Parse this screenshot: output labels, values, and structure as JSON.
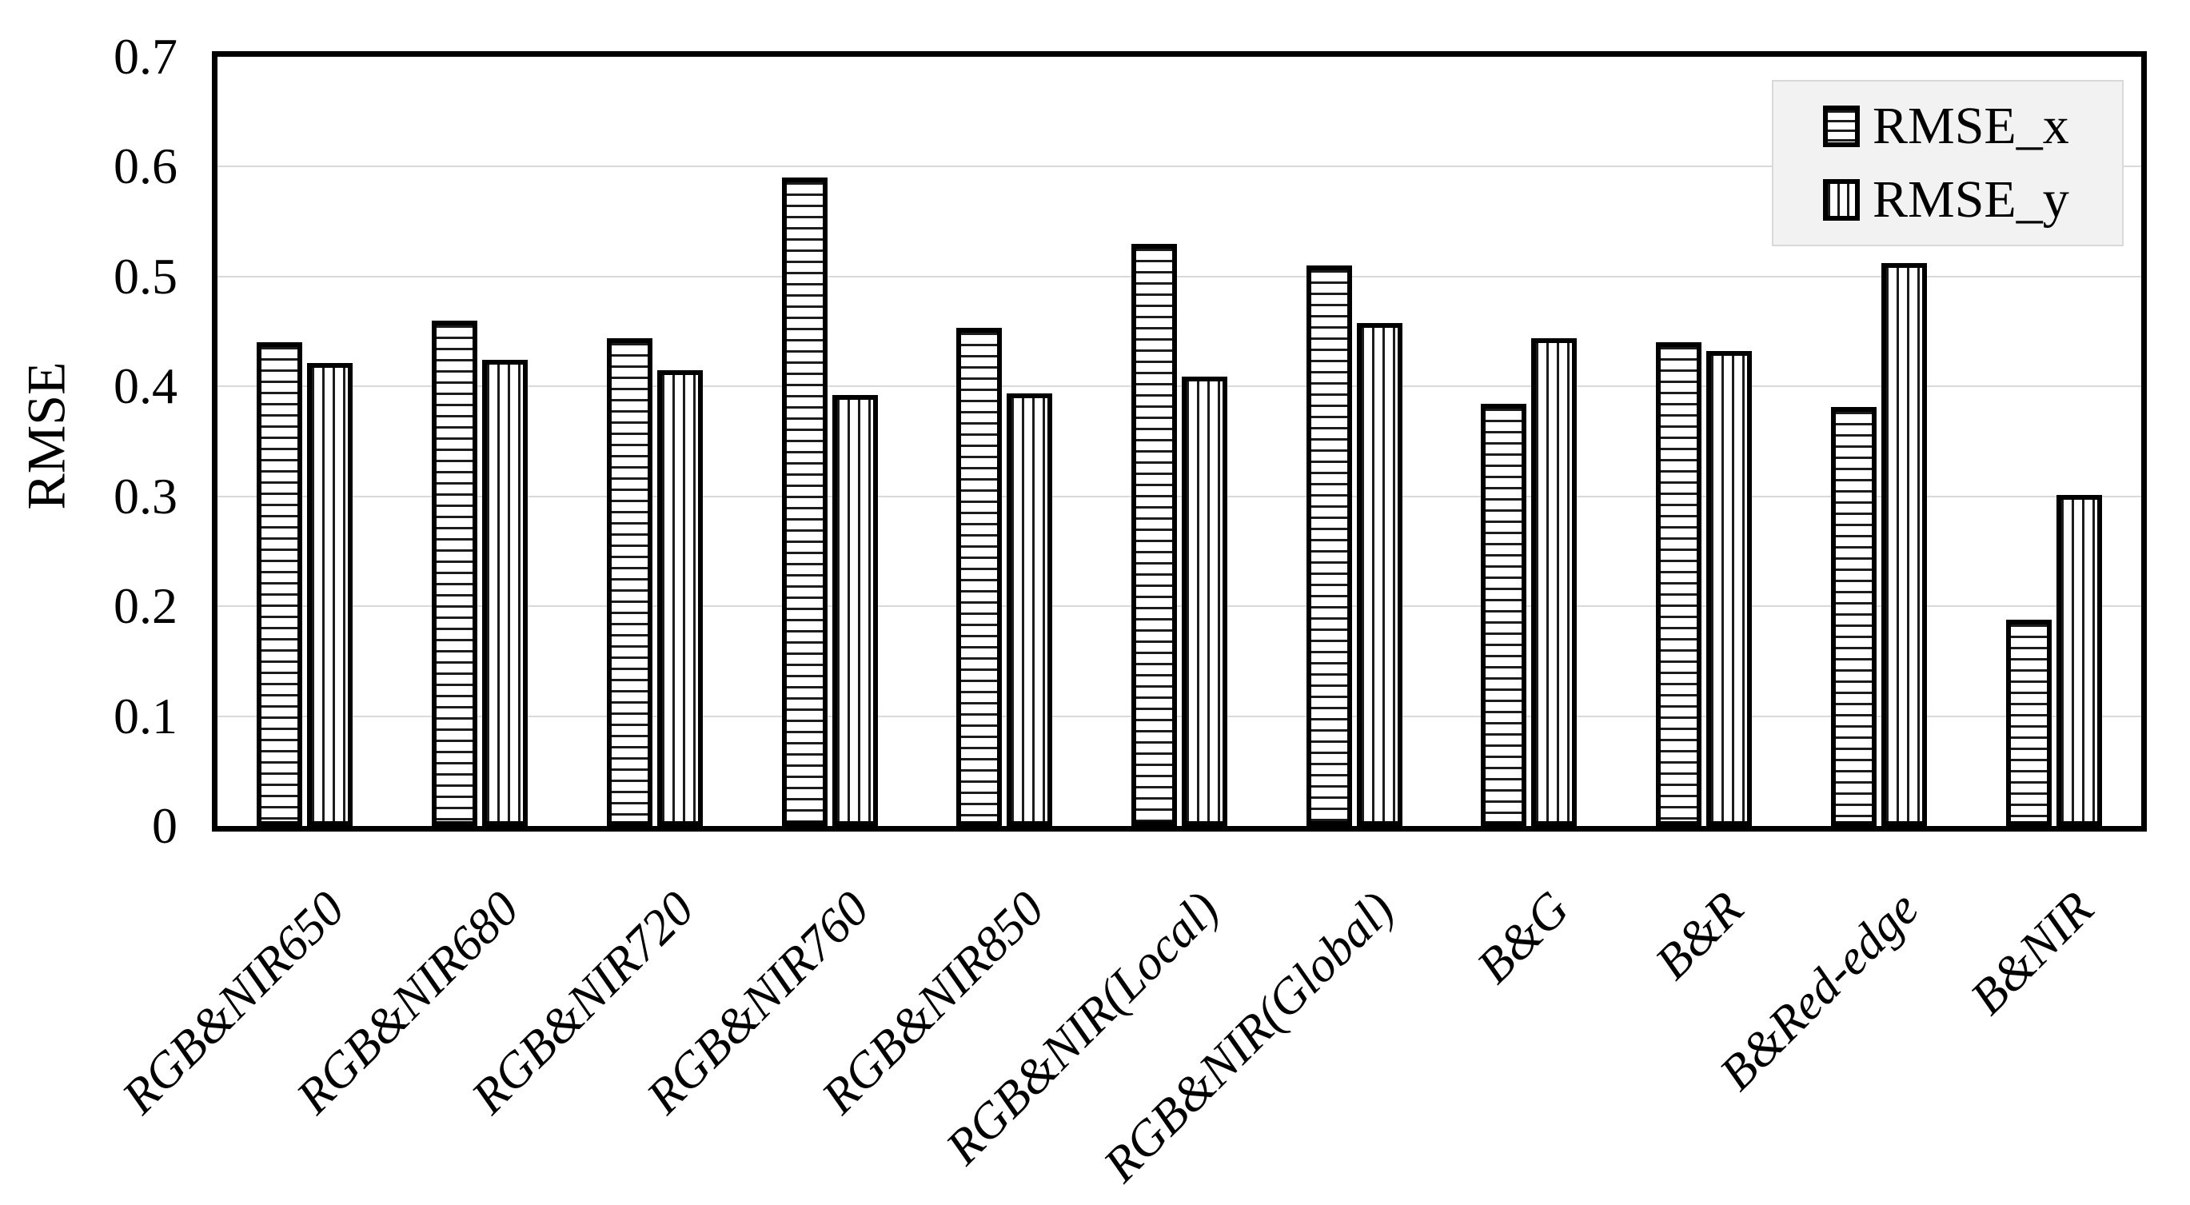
{
  "chart_data": {
    "type": "bar",
    "title": "",
    "xlabel": "",
    "ylabel": "RMSE",
    "ylim": [
      0,
      0.7
    ],
    "ytick_labels": [
      "0",
      "0.1",
      "0.2",
      "0.3",
      "0.4",
      "0.5",
      "0.6",
      "0.7"
    ],
    "grid": "horizontal",
    "legend_position": "top-right-inside",
    "categories": [
      "RGB&NIR650",
      "RGB&NIR680",
      "RGB&NIR720",
      "RGB&NIR760",
      "RGB&NIR850",
      "RGB&NIR(Local)",
      "RGB&NIR(Global)",
      "B&G",
      "B&R",
      "B&Red-edge",
      "B&NIR"
    ],
    "series": [
      {
        "name": "RMSE_x",
        "pattern": "horizontal-stripes",
        "values": [
          0.44,
          0.46,
          0.444,
          0.59,
          0.453,
          0.53,
          0.51,
          0.384,
          0.44,
          0.381,
          0.188
        ]
      },
      {
        "name": "RMSE_y",
        "pattern": "vertical-stripes",
        "values": [
          0.421,
          0.424,
          0.415,
          0.392,
          0.394,
          0.409,
          0.458,
          0.444,
          0.432,
          0.512,
          0.301
        ]
      }
    ]
  },
  "colors": {
    "background": "#ffffff",
    "bar_fill": "#ffffff",
    "bar_border": "#000000",
    "stripe": "#1c1c1c",
    "gridline": "#d9d9d9",
    "axis_frame": "#000000",
    "legend_bg": "#f2f2f2",
    "legend_border": "#d9d9d9",
    "text": "#000000"
  }
}
